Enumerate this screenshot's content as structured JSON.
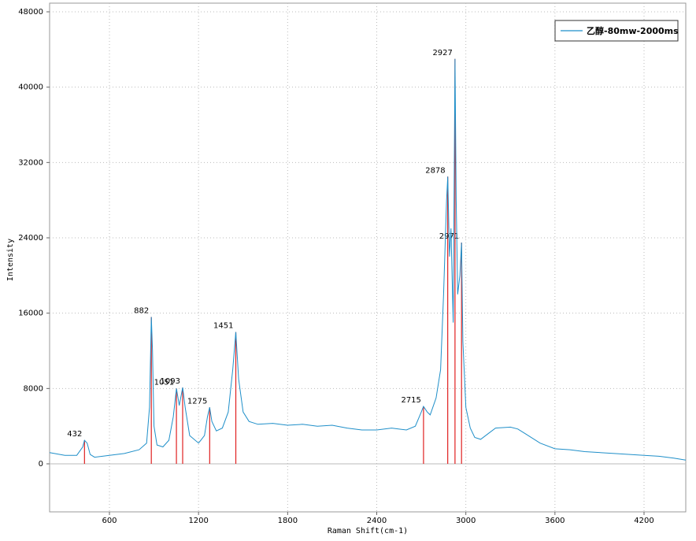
{
  "chart_data": {
    "type": "line",
    "xlabel": "Raman Shift(cm-1)",
    "ylabel": "Intensity",
    "xlim": [
      197,
      4481
    ],
    "ylim": [
      -5100,
      48000
    ],
    "xticks": [
      600,
      1200,
      1800,
      2400,
      3000,
      3600,
      4200
    ],
    "yticks": [
      0,
      8000,
      16000,
      24000,
      32000,
      40000,
      48000
    ],
    "grid": true,
    "legend": "upper right",
    "x": [
      197,
      300,
      380,
      420,
      432,
      450,
      470,
      500,
      600,
      700,
      800,
      850,
      870,
      882,
      890,
      895,
      900,
      920,
      960,
      1000,
      1030,
      1051,
      1070,
      1093,
      1110,
      1140,
      1200,
      1240,
      1260,
      1275,
      1290,
      1320,
      1360,
      1400,
      1430,
      1451,
      1470,
      1500,
      1540,
      1600,
      1700,
      1800,
      1900,
      2000,
      2100,
      2200,
      2300,
      2400,
      2500,
      2600,
      2660,
      2700,
      2715,
      2740,
      2760,
      2800,
      2830,
      2850,
      2870,
      2878,
      2890,
      2900,
      2915,
      2927,
      2935,
      2945,
      2960,
      2971,
      2980,
      3000,
      3030,
      3060,
      3100,
      3150,
      3200,
      3300,
      3350,
      3400,
      3500,
      3600,
      3700,
      3800,
      4000,
      4200,
      4300,
      4400,
      4481
    ],
    "series": [
      {
        "name": "乙醇-80mw-2000ms",
        "color": "#1f8fc9",
        "values": [
          1200,
          900,
          900,
          1800,
          2500,
          2200,
          1000,
          700,
          900,
          1100,
          1500,
          2200,
          6000,
          15600,
          12000,
          8000,
          4000,
          2000,
          1800,
          2500,
          5000,
          8000,
          6200,
          8100,
          6000,
          3000,
          2200,
          3000,
          5000,
          6000,
          4500,
          3500,
          3800,
          5500,
          10000,
          14000,
          9000,
          5500,
          4500,
          4200,
          4300,
          4100,
          4200,
          4000,
          4100,
          3800,
          3600,
          3600,
          3800,
          3600,
          4000,
          5500,
          6100,
          5500,
          5200,
          7000,
          10000,
          18000,
          28000,
          30500,
          22000,
          25000,
          15000,
          43000,
          28000,
          18000,
          20000,
          23500,
          13000,
          6000,
          3800,
          2800,
          2600,
          3200,
          3800,
          3900,
          3700,
          3200,
          2200,
          1600,
          1500,
          1300,
          1100,
          900,
          800,
          600,
          400
        ]
      }
    ],
    "peaks": {
      "color": "#e02020",
      "x": [
        432,
        882,
        1051,
        1093,
        1275,
        1451,
        2715,
        2878,
        2927,
        2971
      ],
      "values": [
        2500,
        15600,
        8000,
        8100,
        6000,
        14000,
        6100,
        30500,
        43000,
        23500
      ]
    }
  }
}
